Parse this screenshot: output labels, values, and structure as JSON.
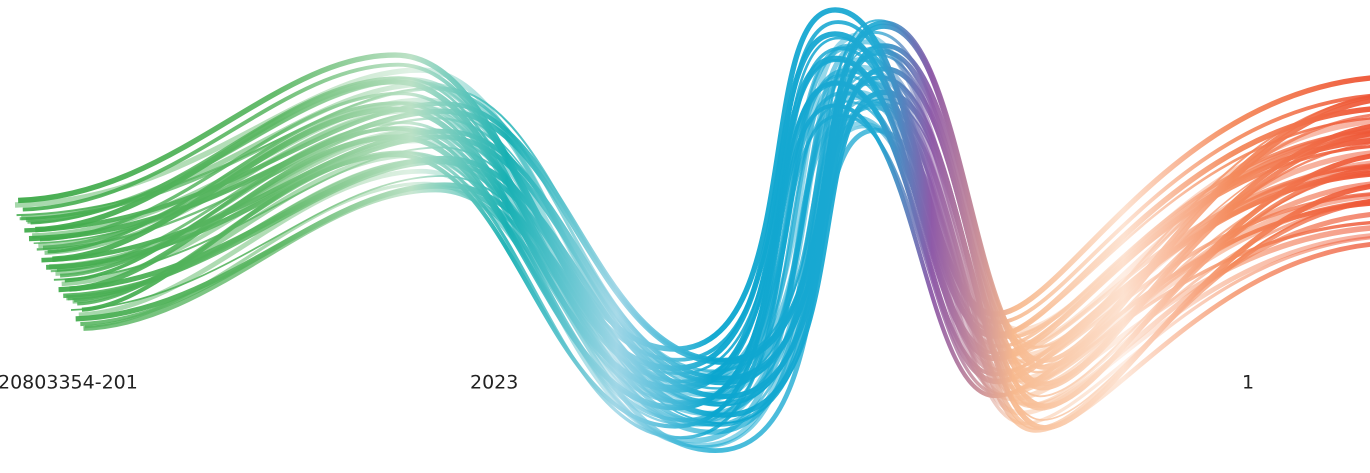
{
  "footer": {
    "left": "20803354-201",
    "center": "2023",
    "right": "1"
  }
}
